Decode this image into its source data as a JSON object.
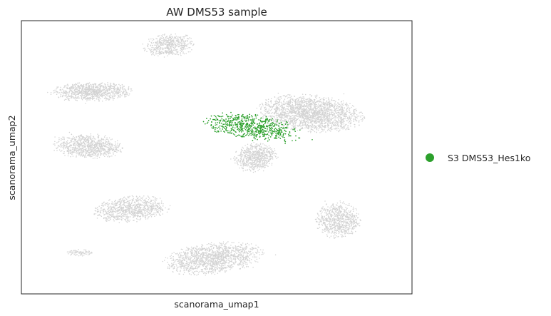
{
  "chart_data": {
    "type": "scatter",
    "title": "AW DMS53 sample",
    "xlabel": "scanorama_umap1",
    "ylabel": "scanorama_umap2",
    "xlim": [
      0,
      100
    ],
    "ylim": [
      0,
      100
    ],
    "grid": false,
    "ticks": false,
    "legend_position": "right",
    "background_color": "#d3d3d3",
    "series": [
      {
        "name": "S3 DMS53_Hes1ko",
        "color": "#2ca02c",
        "regions": [
          {
            "cx": 59,
            "cy": 61,
            "rx": 12.5,
            "ry": 4.5,
            "angle": -12,
            "n": 650
          }
        ]
      }
    ],
    "background_regions": [
      {
        "cx": 38,
        "cy": 91,
        "rx": 6.5,
        "ry": 4,
        "angle": 8,
        "n": 520
      },
      {
        "cx": 18,
        "cy": 74,
        "rx": 10,
        "ry": 3.5,
        "angle": 2,
        "n": 900
      },
      {
        "cx": 17,
        "cy": 54,
        "rx": 8.5,
        "ry": 4.5,
        "angle": -4,
        "n": 850
      },
      {
        "cx": 28,
        "cy": 31,
        "rx": 9.5,
        "ry": 4.5,
        "angle": 8,
        "n": 850
      },
      {
        "cx": 49,
        "cy": 13,
        "rx": 12.5,
        "ry": 5.5,
        "angle": 10,
        "n": 1400
      },
      {
        "cx": 74,
        "cy": 66,
        "rx": 13,
        "ry": 6.5,
        "angle": -8,
        "n": 2000
      },
      {
        "cx": 60,
        "cy": 50,
        "rx": 5.5,
        "ry": 5,
        "angle": 35,
        "n": 650
      },
      {
        "cx": 81,
        "cy": 27,
        "rx": 5.5,
        "ry": 6.5,
        "angle": 0,
        "n": 720
      },
      {
        "cx": 15,
        "cy": 15,
        "rx": 3.5,
        "ry": 1.2,
        "angle": 0,
        "n": 80
      }
    ]
  }
}
